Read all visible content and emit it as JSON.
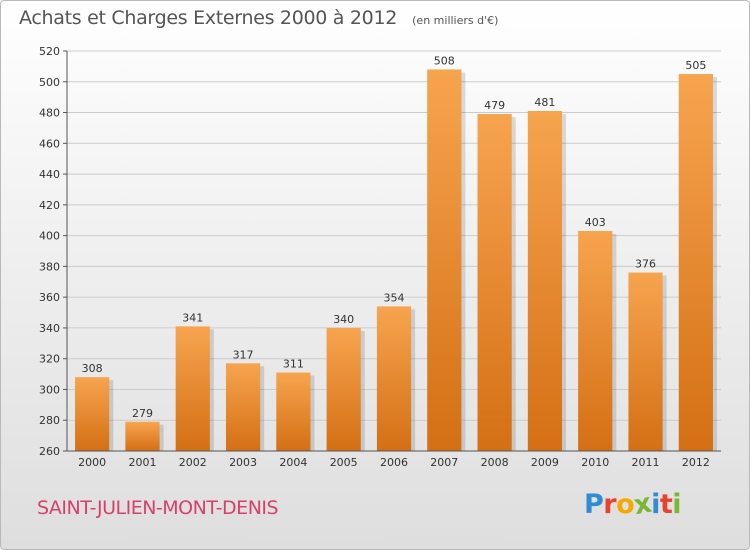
{
  "chart_data": {
    "type": "bar",
    "title": "Achats et Charges Externes 2000 à 2012",
    "subtitle": "(en milliers d'€)",
    "categories": [
      "2000",
      "2001",
      "2002",
      "2003",
      "2004",
      "2005",
      "2006",
      "2007",
      "2008",
      "2009",
      "2010",
      "2011",
      "2012"
    ],
    "values": [
      308,
      279,
      341,
      317,
      311,
      340,
      354,
      508,
      479,
      481,
      403,
      376,
      505
    ],
    "ylim": [
      260,
      520
    ],
    "yticks": [
      260,
      280,
      300,
      320,
      340,
      360,
      380,
      400,
      420,
      440,
      460,
      480,
      500,
      520
    ],
    "xlabel": "",
    "ylabel": "",
    "grid": true,
    "colors": {
      "bar_top": "#f7a44f",
      "bar_bottom": "#d46f14",
      "grid": "#cccccc"
    }
  },
  "footer": {
    "commune": "SAINT-JULIEN-MONT-DENIS",
    "logo_letters": [
      "P",
      "r",
      "o",
      "x",
      "i",
      "t",
      "i"
    ],
    "logo_colors": [
      "#2f8dd6",
      "#e8442d",
      "#f6a800",
      "#79b833",
      "#2f8dd6",
      "#e8442d",
      "#79b833"
    ]
  }
}
